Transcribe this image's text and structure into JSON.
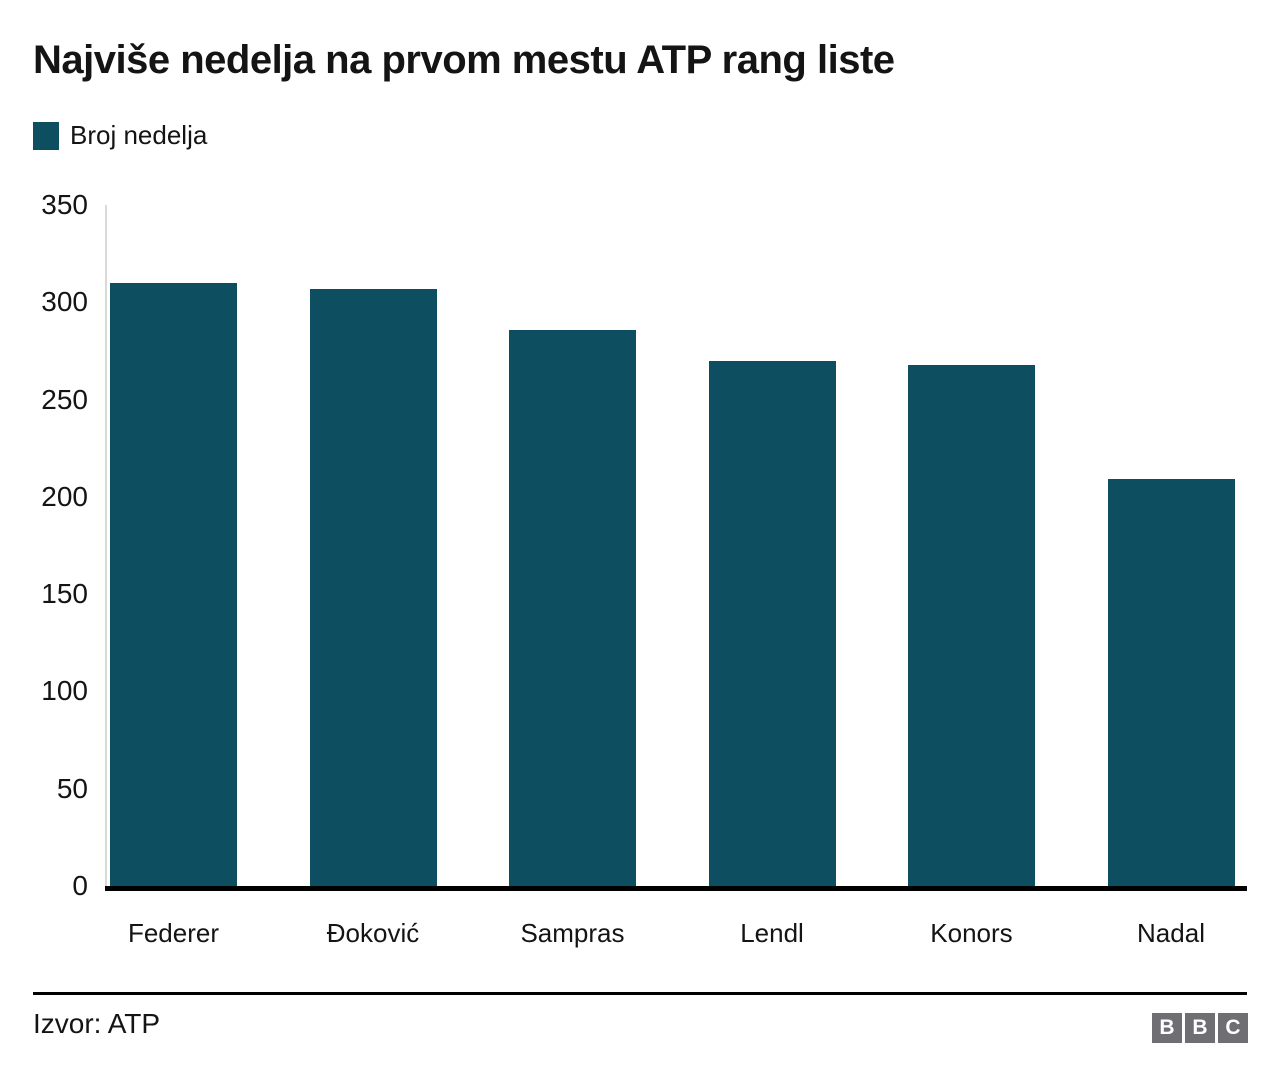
{
  "title": "Najviše nedelja na prvom mestu ATP rang liste",
  "legend": {
    "label": "Broj nedelja"
  },
  "footer": {
    "source": "Izvor: ATP"
  },
  "logo": {
    "letters": [
      "B",
      "B",
      "C"
    ]
  },
  "colors": {
    "bar": "#0d4e60",
    "baseline": "#000000",
    "axis_line": "#d9d9d9",
    "logo_gray": "#6e6e73"
  },
  "chart_data": {
    "type": "bar",
    "title": "Najviše nedelja na prvom mestu ATP rang liste",
    "series_name": "Broj nedelja",
    "categories": [
      "Federer",
      "Đoković",
      "Sampras",
      "Lendl",
      "Konors",
      "Nadal"
    ],
    "values": [
      310,
      307,
      286,
      270,
      268,
      209
    ],
    "xlabel": "",
    "ylabel": "",
    "ylim": [
      0,
      350
    ],
    "yticks": [
      0,
      50,
      100,
      150,
      200,
      250,
      300,
      350
    ],
    "grid": false,
    "legend_position": "top-left"
  }
}
